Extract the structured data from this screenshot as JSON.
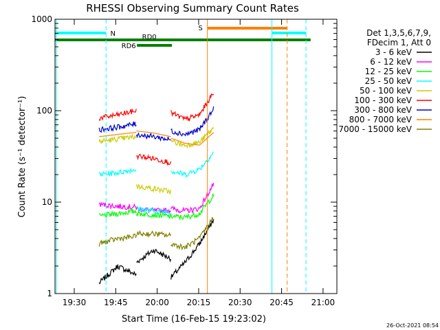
{
  "chart_data": {
    "type": "line",
    "title": "RHESSI Observing Summary Count Rates",
    "xlabel": "Start Time (16-Feb-15 19:23:02)",
    "ylabel": "Count Rate (s⁻¹ detector⁻¹)",
    "ylim": [
      1,
      1000
    ],
    "y_scale": "log",
    "x_domain_time": [
      "19:23:02",
      "21:05:00"
    ],
    "x_ticks": [
      "19:30",
      "19:45",
      "20:00",
      "20:15",
      "20:30",
      "20:45",
      "21:00"
    ],
    "y_ticks": [
      "1",
      "10",
      "100",
      "1000"
    ],
    "timestamp": "26-Oct-2021 08:54",
    "legend_header": [
      "Det 1,3,5,6,7,9,",
      "FDecim 1, Att 0"
    ],
    "legend_position": "right",
    "series": [
      {
        "name": "3 - 6 keV",
        "color": "#000000",
        "noisy": true,
        "segments": [
          {
            "start": "19:39:00",
            "end": "19:52:30",
            "values": [
              1.3,
              2.0,
              1.6
            ]
          },
          {
            "start": "19:52:30",
            "end": "20:05:00",
            "values": [
              2.2,
              3.0,
              2.4
            ]
          },
          {
            "start": "20:05:00",
            "end": "20:20:30",
            "values": [
              1.5,
              2.2,
              3.5,
              6.5
            ]
          }
        ]
      },
      {
        "name": "6 - 12 keV",
        "color": "#ff00ff",
        "noisy": true,
        "segments": [
          {
            "start": "19:39:00",
            "end": "19:52:30",
            "values": [
              9.5,
              9.0,
              8.8
            ]
          },
          {
            "start": "19:52:30",
            "end": "20:05:00",
            "values": [
              8.5,
              8.0,
              8.2
            ]
          },
          {
            "start": "20:05:00",
            "end": "20:20:30",
            "values": [
              8.5,
              8.0,
              8.5,
              16
            ]
          }
        ]
      },
      {
        "name": "12 - 25 keV",
        "color": "#00ff00",
        "noisy": true,
        "segments": [
          {
            "start": "19:39:00",
            "end": "19:52:30",
            "values": [
              7.0,
              7.5,
              8.0
            ]
          },
          {
            "start": "19:52:30",
            "end": "20:05:00",
            "values": [
              7.5,
              7.3,
              7.0
            ]
          },
          {
            "start": "20:05:00",
            "end": "20:20:30",
            "values": [
              7.0,
              6.8,
              7.5,
              12
            ]
          }
        ]
      },
      {
        "name": "25 - 50 keV",
        "color": "#00ffff",
        "noisy": true,
        "segments": [
          {
            "start": "19:39:00",
            "end": "19:52:30",
            "values": [
              20,
              21,
              23
            ]
          },
          {
            "start": "19:52:30",
            "end": "20:05:00",
            "values": [
              8.5,
              8.0,
              7.8
            ]
          },
          {
            "start": "20:05:00",
            "end": "20:20:30",
            "values": [
              22,
              20,
              23,
              35
            ]
          }
        ]
      },
      {
        "name": "50 - 100 keV",
        "color": "#cccc00",
        "noisy": true,
        "segments": [
          {
            "start": "19:39:00",
            "end": "19:52:30",
            "values": [
              46,
              49,
              52
            ]
          },
          {
            "start": "19:52:30",
            "end": "20:05:00",
            "values": [
              15,
              14,
              13
            ]
          },
          {
            "start": "20:05:00",
            "end": "20:20:30",
            "values": [
              46,
              42,
              45,
              65
            ]
          }
        ]
      },
      {
        "name": "100 - 300 keV",
        "color": "#ff0000",
        "noisy": true,
        "segments": [
          {
            "start": "19:39:00",
            "end": "19:52:30",
            "values": [
              83,
              90,
              100
            ]
          },
          {
            "start": "19:52:30",
            "end": "20:05:00",
            "values": [
              32,
              30,
              27
            ]
          },
          {
            "start": "20:05:00",
            "end": "20:20:30",
            "values": [
              95,
              80,
              90,
              160
            ]
          }
        ]
      },
      {
        "name": "300 - 800 keV",
        "color": "#0000cc",
        "noisy": true,
        "segments": [
          {
            "start": "19:39:00",
            "end": "19:52:30",
            "values": [
              62,
              66,
              72
            ]
          },
          {
            "start": "19:52:30",
            "end": "20:05:00",
            "values": [
              55,
              52,
              48
            ]
          },
          {
            "start": "20:05:00",
            "end": "20:20:30",
            "values": [
              60,
              55,
              62,
              105
            ]
          }
        ]
      },
      {
        "name": "800 - 7000 keV",
        "color": "#ff8000",
        "noisy": false,
        "segments": [
          {
            "start": "19:39:00",
            "end": "19:52:30",
            "values": [
              52,
              55,
              58
            ]
          },
          {
            "start": "19:52:30",
            "end": "20:05:00",
            "values": [
              60,
              57,
              52
            ]
          },
          {
            "start": "20:05:00",
            "end": "20:20:30",
            "values": [
              50,
              44,
              42,
              58
            ]
          }
        ]
      },
      {
        "name": "7000 - 15000 keV",
        "color": "#808000",
        "noisy": true,
        "segments": [
          {
            "start": "19:39:00",
            "end": "19:52:30",
            "values": [
              3.5,
              4.0,
              4.2
            ]
          },
          {
            "start": "19:52:30",
            "end": "20:05:00",
            "values": [
              4.5,
              4.5,
              4.3
            ]
          },
          {
            "start": "20:05:00",
            "end": "20:20:30",
            "values": [
              3.5,
              3.2,
              4.0,
              7.0
            ]
          }
        ]
      }
    ],
    "bars": [
      {
        "label": "N",
        "color": "#00ffff",
        "spans": [
          [
            "19:23:02",
            "19:41:30"
          ],
          [
            "20:41:30",
            "20:53:50"
          ]
        ]
      },
      {
        "label": "S",
        "color": "#ff8000",
        "spans": [
          [
            "20:18:10",
            "20:47:00"
          ]
        ]
      },
      {
        "label": "RD0",
        "color": "#008000",
        "spans": [
          [
            "19:23:02",
            "20:55:30"
          ]
        ]
      },
      {
        "label": "RD6",
        "color": "#008000",
        "spans": [
          [
            "19:52:40",
            "20:05:20"
          ]
        ]
      }
    ],
    "vlines": [
      {
        "time": "19:23:30",
        "color": "#00ffff",
        "style": "solid"
      },
      {
        "time": "19:41:30",
        "color": "#00ffff",
        "style": "dashed"
      },
      {
        "time": "20:41:30",
        "color": "#00ffff",
        "style": "solid"
      },
      {
        "time": "20:53:50",
        "color": "#00ffff",
        "style": "dashed"
      },
      {
        "time": "20:18:10",
        "color": "#ff8000",
        "style": "solid"
      },
      {
        "time": "20:47:00",
        "color": "#ff8000",
        "style": "dashed"
      }
    ]
  }
}
